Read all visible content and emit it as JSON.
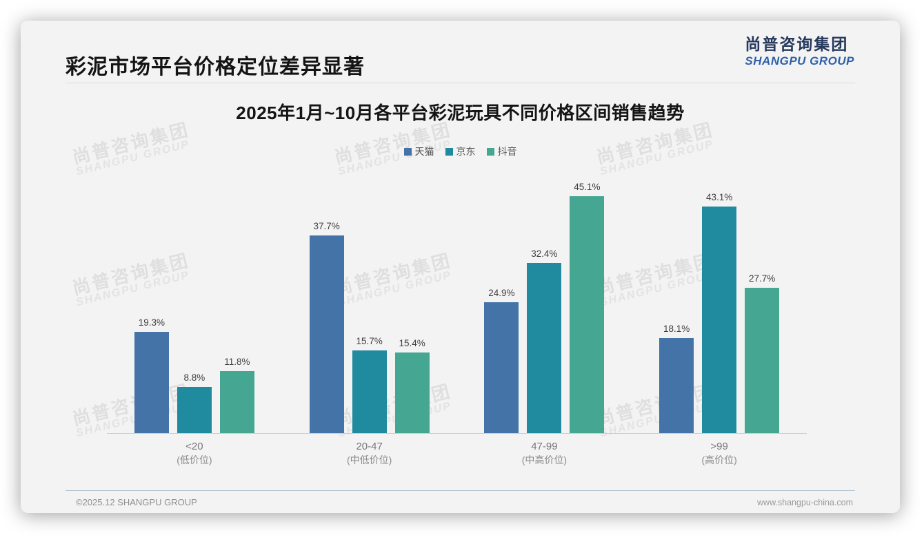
{
  "page": {
    "header": {
      "title": "彩泥市场平台价格定位差异显著"
    },
    "logo": {
      "cn": "尚普咨询集团",
      "en": "SHANGPU GROUP"
    },
    "watermark": {
      "cn": "尚普咨询集团",
      "en": "SHANGPU GROUP"
    },
    "footer": {
      "left": "©2025.12 SHANGPU GROUP",
      "right": "www.shangpu-china.com"
    }
  },
  "chart_data": {
    "type": "bar",
    "title": "2025年1月~10月各平台彩泥玩具不同价格区间销售趋势",
    "categories": [
      "<20",
      "20-47",
      "47-99",
      ">99"
    ],
    "category_sublabels": [
      "(低价位)",
      "(中低价位)",
      "(中高价位)",
      "(高价位)"
    ],
    "series": [
      {
        "name": "天猫",
        "color": "#4473a8",
        "values": [
          19.3,
          37.7,
          24.9,
          18.1
        ]
      },
      {
        "name": "京东",
        "color": "#208a9e",
        "values": [
          8.8,
          15.7,
          32.4,
          43.1
        ]
      },
      {
        "name": "抖音",
        "color": "#45a792",
        "values": [
          11.8,
          15.4,
          45.1,
          27.7
        ]
      }
    ],
    "value_suffix": "%",
    "ylim": [
      0,
      48
    ],
    "legend_position": "top",
    "grid": false,
    "data_labels": true,
    "xlabel": "",
    "ylabel": ""
  }
}
